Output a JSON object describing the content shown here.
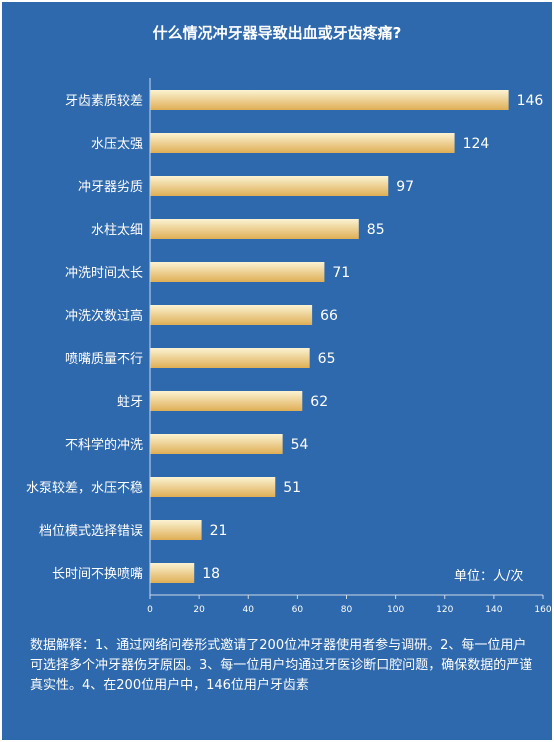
{
  "colors": {
    "background": "#2e69ae",
    "bar_top": "#fbf3d2",
    "bar_bottom": "#dfae55",
    "text": "#ffffff",
    "axis": "#cfd9e8"
  },
  "unit_label": "单位：人/次",
  "note": "数据解释：1、通过网络问卷形式邀请了200位冲牙器使用者参与调研。2、每一位用户可选择多个冲牙器伤牙原因。3、每一位用户均通过牙医诊断口腔问题，确保数据的严谨真实性。4、在200位用户中，146位用户牙齿素",
  "chart_data": {
    "type": "bar",
    "orientation": "horizontal",
    "title": "什么情况冲牙器导致出血或牙齿疼痛?",
    "categories": [
      "牙齿素质较差",
      "水压太强",
      "冲牙器劣质",
      "水柱太细",
      "冲洗时间太长",
      "冲洗次数过高",
      "喷嘴质量不行",
      "蛀牙",
      "不科学的冲洗",
      "水泵较差，水压不稳",
      "档位模式选择错误",
      "长时间不换喷嘴"
    ],
    "values": [
      146,
      124,
      97,
      85,
      71,
      66,
      65,
      62,
      54,
      51,
      21,
      18
    ],
    "xlim": [
      0,
      160
    ],
    "xticks": [
      0,
      20,
      40,
      60,
      80,
      100,
      120,
      140,
      160
    ],
    "grid": false,
    "legend": "none"
  }
}
